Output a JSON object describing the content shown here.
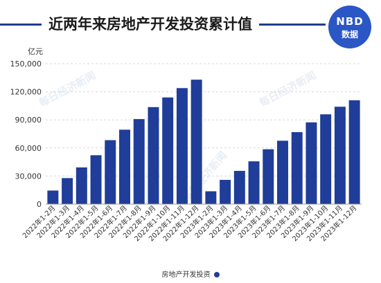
{
  "header": {
    "title": "近两年来房地产开发投资累计值"
  },
  "logo": {
    "top_text": "NBD",
    "bottom_text": "数据"
  },
  "watermark": {
    "text": "每日经济新闻"
  },
  "chart_data": {
    "type": "bar",
    "title": "近两年来房地产开发投资累计值",
    "ylabel": "亿元",
    "xlabel": "",
    "ylim": [
      0,
      150000
    ],
    "yticks": [
      0,
      30000,
      60000,
      90000,
      120000,
      150000
    ],
    "ytick_labels": [
      "0",
      "30,000",
      "60,000",
      "90,000",
      "120,000",
      "150,000"
    ],
    "grid": true,
    "legend_position": "bottom",
    "categories": [
      "2022年1-2月",
      "2022年1-3月",
      "2022年1-4月",
      "2022年1-5月",
      "2022年1-6月",
      "2022年1-7月",
      "2022年1-8月",
      "2022年1-9月",
      "2022年1-10月",
      "2022年1-11月",
      "2022年1-12月",
      "2023年1-2月",
      "2023年1-3月",
      "2023年1-4月",
      "2023年1-5月",
      "2023年1-6月",
      "2023年1-7月",
      "2023年1-8月",
      "2023年1-9月",
      "2023年1-10月",
      "2023年1-11月",
      "2023年1-12月"
    ],
    "series": [
      {
        "name": "房地产开发投资",
        "color": "#1f3d99",
        "values": [
          14500,
          27800,
          39200,
          52200,
          68300,
          79500,
          90800,
          103600,
          113900,
          123900,
          132900,
          13700,
          25900,
          35500,
          45700,
          58600,
          67700,
          76900,
          87300,
          95900,
          104000,
          110900
        ]
      }
    ]
  }
}
